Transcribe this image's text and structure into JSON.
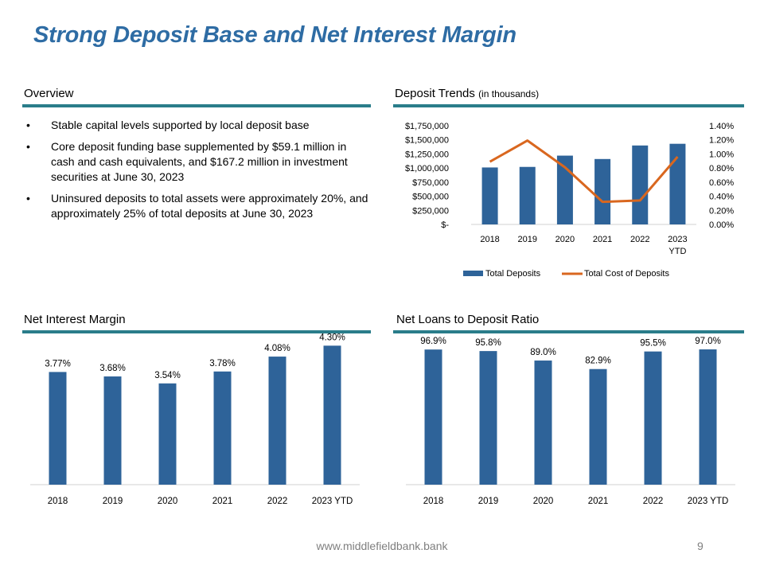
{
  "page": {
    "title": "Strong Deposit Base and Net Interest Margin",
    "footer_url": "www.middlefieldbank.bank",
    "page_number": "9"
  },
  "colors": {
    "bar": "#2e6399",
    "line": "#d9671f",
    "rule": "#2a7d8a",
    "title": "#2e6ca4"
  },
  "overview": {
    "heading": "Overview",
    "bullet_glyph": "•",
    "bullets": [
      "Stable capital levels supported by local deposit base",
      "Core deposit funding base supplemented by $59.1 million in cash and cash equivalents, and $167.2 million in investment securities at June 30, 2023",
      "Uninsured deposits to total assets were approximately 20%, and approximately 25% of total deposits at June 30, 2023"
    ]
  },
  "deposit_section": {
    "heading": "Deposit Trends",
    "heading_note": "(in thousands)"
  },
  "nim_section": {
    "heading": "Net Interest Margin"
  },
  "ltd_section": {
    "heading": "Net Loans to Deposit Ratio"
  },
  "chart_data": [
    {
      "id": "deposit-trends",
      "type": "bar",
      "title": "Deposit Trends (in thousands)",
      "categories": [
        "2018",
        "2019",
        "2020",
        "2021",
        "2022",
        "2023\nYTD"
      ],
      "series": [
        {
          "name": "Total Deposits",
          "type": "bar",
          "axis": "left",
          "values": [
            1010000,
            1020000,
            1220000,
            1160000,
            1400000,
            1430000
          ]
        },
        {
          "name": "Total Cost of Deposits",
          "type": "line",
          "axis": "right",
          "values": [
            0.89,
            1.19,
            0.81,
            0.32,
            0.34,
            0.96
          ]
        }
      ],
      "y_left": {
        "min": 0,
        "max": 1750000,
        "ticks": [
          "$-",
          "$250,000",
          "$500,000",
          "$750,000",
          "$1,000,000",
          "$1,250,000",
          "$1,500,000",
          "$1,750,000"
        ]
      },
      "y_right": {
        "min": 0,
        "max": 1.4,
        "ticks": [
          "0.00%",
          "0.20%",
          "0.40%",
          "0.60%",
          "0.80%",
          "1.00%",
          "1.20%",
          "1.40%"
        ]
      },
      "legend": [
        "Total Deposits",
        "Total Cost of Deposits"
      ],
      "legend_position": "bottom"
    },
    {
      "id": "net-interest-margin",
      "type": "bar",
      "title": "Net Interest Margin",
      "categories": [
        "2018",
        "2019",
        "2020",
        "2021",
        "2022",
        "2023 YTD"
      ],
      "values": [
        3.77,
        3.68,
        3.54,
        3.78,
        4.08,
        4.3
      ],
      "labels": [
        "3.77%",
        "3.68%",
        "3.54%",
        "3.78%",
        "4.08%",
        "4.30%"
      ],
      "ylim": [
        1.5,
        4.45
      ]
    },
    {
      "id": "loans-to-deposit",
      "type": "bar",
      "title": "Net Loans to Deposit Ratio",
      "categories": [
        "2018",
        "2019",
        "2020",
        "2021",
        "2022",
        "2023 YTD"
      ],
      "values": [
        96.9,
        95.8,
        89.0,
        82.9,
        95.5,
        97.0
      ],
      "labels": [
        "96.9%",
        "95.8%",
        "89.0%",
        "82.9%",
        "95.5%",
        "97.0%"
      ],
      "ylim": [
        0,
        105
      ]
    }
  ]
}
